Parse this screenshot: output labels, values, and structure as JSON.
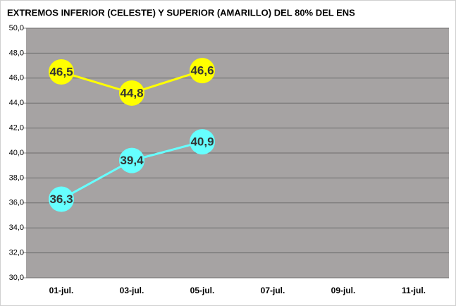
{
  "chart_data": {
    "type": "line",
    "title": "EXTREMOS INFERIOR (CELESTE) Y SUPERIOR (AMARILLO) DEL 80% DEL ENS",
    "categories": [
      "01-jul.",
      "03-jul.",
      "05-jul.",
      "07-jul.",
      "09-jul.",
      "11-jul."
    ],
    "series": [
      {
        "color": "#ffff00",
        "values": [
          46.5,
          44.8,
          46.6,
          null,
          null,
          null
        ],
        "value_labels": [
          "46,5",
          "44,8",
          "46,6",
          null,
          null,
          null
        ]
      },
      {
        "color": "#66ffff",
        "values": [
          36.3,
          39.4,
          40.9,
          null,
          null,
          null
        ],
        "value_labels": [
          "36,3",
          "39,4",
          "40,9",
          null,
          null,
          null
        ]
      }
    ],
    "ylim": [
      30,
      50
    ],
    "yticks": [
      {
        "value": 30,
        "label": "30,0"
      },
      {
        "value": 32,
        "label": "32,0"
      },
      {
        "value": 34,
        "label": "34,0"
      },
      {
        "value": 36,
        "label": "36,0"
      },
      {
        "value": 38,
        "label": "38,0"
      },
      {
        "value": 40,
        "label": "40,0"
      },
      {
        "value": 42,
        "label": "42,0"
      },
      {
        "value": 44,
        "label": "44,0"
      },
      {
        "value": 46,
        "label": "46,0"
      },
      {
        "value": 48,
        "label": "48,0"
      },
      {
        "value": 50,
        "label": "50,0"
      }
    ],
    "grid": true,
    "plot_background": "#a6a3a3"
  }
}
